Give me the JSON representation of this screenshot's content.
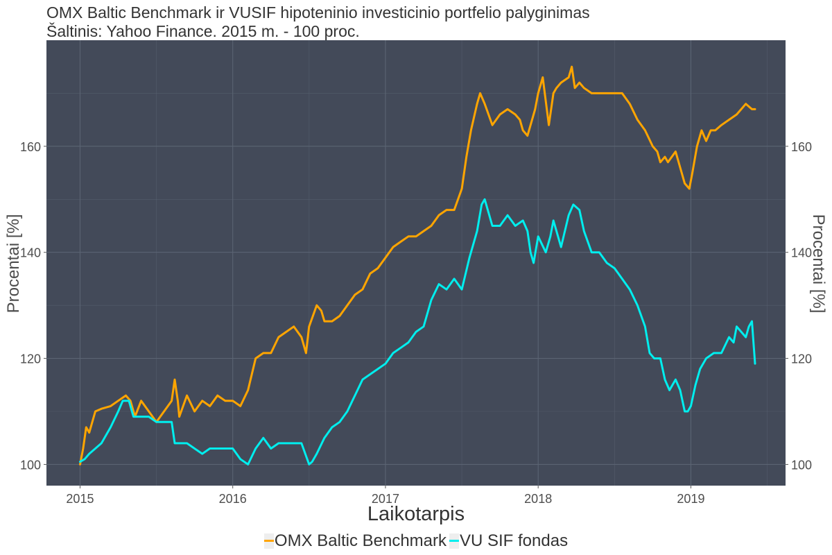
{
  "chart_data": {
    "type": "line",
    "title": "OMX Baltic Benchmark ir VUSIF hipoteninio investicinio portfelio palyginimas",
    "subtitle": "Šaltinis: Yahoo Finance. 2015 m. - 100 proc.",
    "xlabel": "Laikotarpis",
    "ylabel": "Procentai [%]",
    "ylabel_right": "Procentai [%]",
    "x_ticks": [
      "2015",
      "2016",
      "2017",
      "2018",
      "2019"
    ],
    "y_ticks": [
      "100",
      "120",
      "140",
      "160"
    ],
    "xlim": [
      2014.78,
      2019.62
    ],
    "ylim": [
      96,
      180
    ],
    "grid": true,
    "legend_position": "bottom",
    "panel_color": "#434a59",
    "grid_color": "#5b6473",
    "series": [
      {
        "name": "OMX Baltic Benchmark",
        "color": "#ffa500",
        "x": [
          2015.0,
          2015.02,
          2015.04,
          2015.06,
          2015.1,
          2015.14,
          2015.2,
          2015.25,
          2015.3,
          2015.33,
          2015.36,
          2015.4,
          2015.45,
          2015.5,
          2015.55,
          2015.6,
          2015.62,
          2015.64,
          2015.65,
          2015.7,
          2015.75,
          2015.8,
          2015.85,
          2015.9,
          2015.95,
          2016.0,
          2016.05,
          2016.1,
          2016.15,
          2016.2,
          2016.25,
          2016.3,
          2016.35,
          2016.4,
          2016.45,
          2016.48,
          2016.5,
          2016.55,
          2016.58,
          2016.6,
          2016.65,
          2016.7,
          2016.75,
          2016.8,
          2016.85,
          2016.9,
          2016.95,
          2017.0,
          2017.05,
          2017.1,
          2017.15,
          2017.2,
          2017.25,
          2017.3,
          2017.35,
          2017.4,
          2017.45,
          2017.5,
          2017.53,
          2017.56,
          2017.6,
          2017.62,
          2017.65,
          2017.7,
          2017.75,
          2017.8,
          2017.85,
          2017.88,
          2017.9,
          2017.93,
          2017.95,
          2017.98,
          2018.0,
          2018.03,
          2018.07,
          2018.1,
          2018.12,
          2018.15,
          2018.2,
          2018.22,
          2018.24,
          2018.27,
          2018.3,
          2018.35,
          2018.4,
          2018.45,
          2018.5,
          2018.55,
          2018.6,
          2018.65,
          2018.7,
          2018.75,
          2018.78,
          2018.8,
          2018.83,
          2018.85,
          2018.9,
          2018.93,
          2018.96,
          2018.99,
          2019.01,
          2019.04,
          2019.07,
          2019.1,
          2019.13,
          2019.16,
          2019.2,
          2019.25,
          2019.3,
          2019.33,
          2019.36,
          2019.4,
          2019.42
        ],
        "values": [
          100,
          103,
          107,
          106,
          110,
          110.5,
          111,
          112,
          113,
          112,
          109,
          112,
          110,
          108,
          110,
          112,
          116,
          112,
          109,
          113,
          110,
          112,
          111,
          113,
          112,
          112,
          111,
          114,
          120,
          121,
          121,
          124,
          125,
          126,
          124,
          121,
          126,
          130,
          129,
          127,
          127,
          128,
          130,
          132,
          133,
          136,
          137,
          139,
          141,
          142,
          143,
          143,
          144,
          145,
          147,
          148,
          148,
          152,
          158,
          163,
          168,
          170,
          168,
          164,
          166,
          167,
          166,
          165,
          163,
          162,
          164,
          167,
          170,
          173,
          164,
          170,
          171,
          172,
          173,
          175,
          171,
          172,
          171,
          170,
          170,
          170,
          170,
          170,
          168,
          165,
          163,
          160,
          159,
          157,
          158,
          157,
          159,
          156,
          153,
          152,
          155,
          160,
          163,
          161,
          163,
          163,
          164,
          165,
          166,
          167,
          168,
          167,
          167
        ]
      },
      {
        "name": "VU SIF fondas",
        "color": "#00eeee",
        "x": [
          2015.0,
          2015.03,
          2015.06,
          2015.1,
          2015.14,
          2015.2,
          2015.25,
          2015.28,
          2015.32,
          2015.35,
          2015.4,
          2015.45,
          2015.5,
          2015.55,
          2015.6,
          2015.62,
          2015.65,
          2015.7,
          2015.75,
          2015.8,
          2015.85,
          2015.9,
          2015.95,
          2016.0,
          2016.05,
          2016.1,
          2016.15,
          2016.2,
          2016.25,
          2016.3,
          2016.35,
          2016.4,
          2016.45,
          2016.5,
          2016.52,
          2016.55,
          2016.6,
          2016.65,
          2016.7,
          2016.75,
          2016.8,
          2016.85,
          2016.9,
          2016.95,
          2017.0,
          2017.05,
          2017.1,
          2017.15,
          2017.2,
          2017.25,
          2017.3,
          2017.35,
          2017.4,
          2017.45,
          2017.5,
          2017.55,
          2017.6,
          2017.63,
          2017.65,
          2017.7,
          2017.75,
          2017.8,
          2017.85,
          2017.9,
          2017.93,
          2017.95,
          2017.97,
          2018.0,
          2018.05,
          2018.08,
          2018.1,
          2018.12,
          2018.15,
          2018.2,
          2018.23,
          2018.27,
          2018.3,
          2018.35,
          2018.4,
          2018.45,
          2018.5,
          2018.55,
          2018.6,
          2018.65,
          2018.7,
          2018.73,
          2018.76,
          2018.8,
          2018.83,
          2018.86,
          2018.9,
          2018.93,
          2018.96,
          2018.98,
          2019.0,
          2019.03,
          2019.06,
          2019.1,
          2019.15,
          2019.2,
          2019.25,
          2019.28,
          2019.3,
          2019.33,
          2019.36,
          2019.38,
          2019.4,
          2019.42
        ],
        "values": [
          100.5,
          101,
          102,
          103,
          104,
          107,
          110,
          112,
          112,
          109,
          109,
          109,
          108,
          108,
          108,
          104,
          104,
          104,
          103,
          102,
          103,
          103,
          103,
          103,
          101,
          100,
          103,
          105,
          103,
          104,
          104,
          104,
          104,
          100,
          100.5,
          102,
          105,
          107,
          108,
          110,
          113,
          116,
          117,
          118,
          119,
          121,
          122,
          123,
          125,
          126,
          131,
          134,
          133,
          135,
          133,
          139,
          144,
          149,
          150,
          145,
          145,
          147,
          145,
          146,
          144,
          140,
          138,
          143,
          140,
          143,
          146,
          144,
          141,
          147,
          149,
          148,
          144,
          140,
          140,
          138,
          137,
          135,
          133,
          130,
          126,
          121,
          120,
          120,
          116,
          114,
          116,
          114,
          110,
          110,
          111,
          115,
          118,
          120,
          121,
          121,
          124,
          123,
          126,
          125,
          124,
          126,
          127,
          119
        ]
      }
    ]
  }
}
